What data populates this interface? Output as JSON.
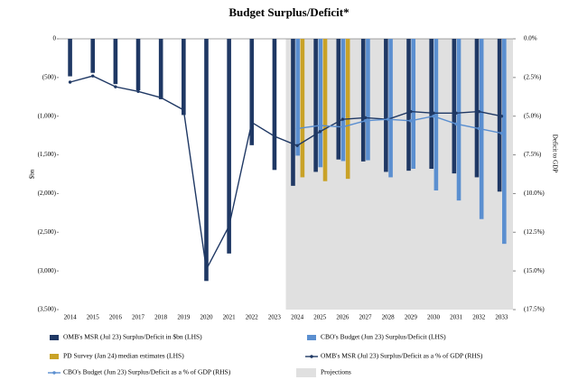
{
  "chart_data": {
    "type": "combo",
    "title": "Budget Surplus/Deficit*",
    "ylabel": "$bn",
    "y2label": "Deficit to GDP",
    "categories": [
      "2014",
      "2015",
      "2016",
      "2017",
      "2018",
      "2019",
      "2020",
      "2021",
      "2022",
      "2023",
      "2024",
      "2025",
      "2026",
      "2027",
      "2028",
      "2029",
      "2030",
      "2031",
      "2032",
      "2033"
    ],
    "series": [
      {
        "name": "OMB's MSR (Jul 23) Surplus/Deficit in $bn (LHS)",
        "type": "bar",
        "color": "#1f3864",
        "values": [
          -485,
          -440,
          -585,
          -665,
          -780,
          -985,
          -3130,
          -2775,
          -1375,
          -1695,
          -1900,
          -1720,
          -1560,
          -1585,
          -1720,
          -1705,
          -1680,
          -1740,
          -1790,
          -1975
        ]
      },
      {
        "name": "CBO's Budget (Jun 23) Surplus/Deficit (LHS)",
        "type": "bar",
        "color": "#5b8fd0",
        "values": [
          null,
          null,
          null,
          null,
          null,
          null,
          null,
          null,
          null,
          null,
          -1510,
          -1660,
          -1580,
          -1570,
          -1790,
          -1680,
          -1960,
          -2090,
          -2330,
          -2650
        ]
      },
      {
        "name": "PD Survey (Jan 24) median estimates (LHS)",
        "type": "bar",
        "color": "#c9a227",
        "values": [
          null,
          null,
          null,
          null,
          null,
          null,
          null,
          null,
          null,
          null,
          -1790,
          -1840,
          -1810,
          null,
          null,
          null,
          null,
          null,
          null,
          null
        ]
      },
      {
        "name": "OMB's MSR (Jul 23) Surplus/Deficit as a % of GDP (RHS)",
        "type": "line",
        "axis": "y2",
        "color": "#1f3864",
        "values": [
          -2.8,
          -2.4,
          -3.1,
          -3.4,
          -3.8,
          -4.6,
          -14.9,
          -12.1,
          -5.4,
          -6.3,
          -6.9,
          -6.0,
          -5.2,
          -5.1,
          -5.2,
          -4.7,
          -4.8,
          -4.8,
          -4.7,
          -5.0
        ]
      },
      {
        "name": "CBO's Budget (Jun 23) Surplus/Deficit as a % of GDP (RHS)",
        "type": "line",
        "axis": "y2",
        "color": "#5b8fd0",
        "values": [
          null,
          null,
          null,
          null,
          null,
          null,
          null,
          null,
          null,
          null,
          -5.8,
          -5.6,
          -5.7,
          -5.3,
          -5.2,
          -5.3,
          -5.0,
          -5.5,
          -5.8,
          -6.1
        ]
      }
    ],
    "projections_label": "Projections",
    "ylim": [
      -3500,
      0
    ],
    "yticks": [
      0,
      {
        "value": -500,
        "label": "(500)"
      },
      {
        "value": -1000,
        "label": "(1,000)"
      },
      {
        "value": -1500,
        "label": "(1,500)"
      },
      {
        "value": -2000,
        "label": "(2,000)"
      },
      {
        "value": -2500,
        "label": "(2,500)"
      },
      {
        "value": -3000,
        "label": "(3,000)"
      },
      {
        "value": -3500,
        "label": "(3,500)"
      }
    ],
    "y2lim": [
      -17.5,
      0
    ],
    "y2ticks": [
      {
        "value": 0,
        "label": "0.0%"
      },
      {
        "value": -2.5,
        "label": "(2.5%)"
      },
      {
        "value": -5,
        "label": "(5.0%)"
      },
      {
        "value": -7.5,
        "label": "(7.5%)"
      },
      {
        "value": -10,
        "label": "(10.0%)"
      },
      {
        "value": -12.5,
        "label": "(12.5%)"
      },
      {
        "value": -15,
        "label": "(15.0%)"
      },
      {
        "value": -17.5,
        "label": "(17.5%)"
      }
    ]
  }
}
